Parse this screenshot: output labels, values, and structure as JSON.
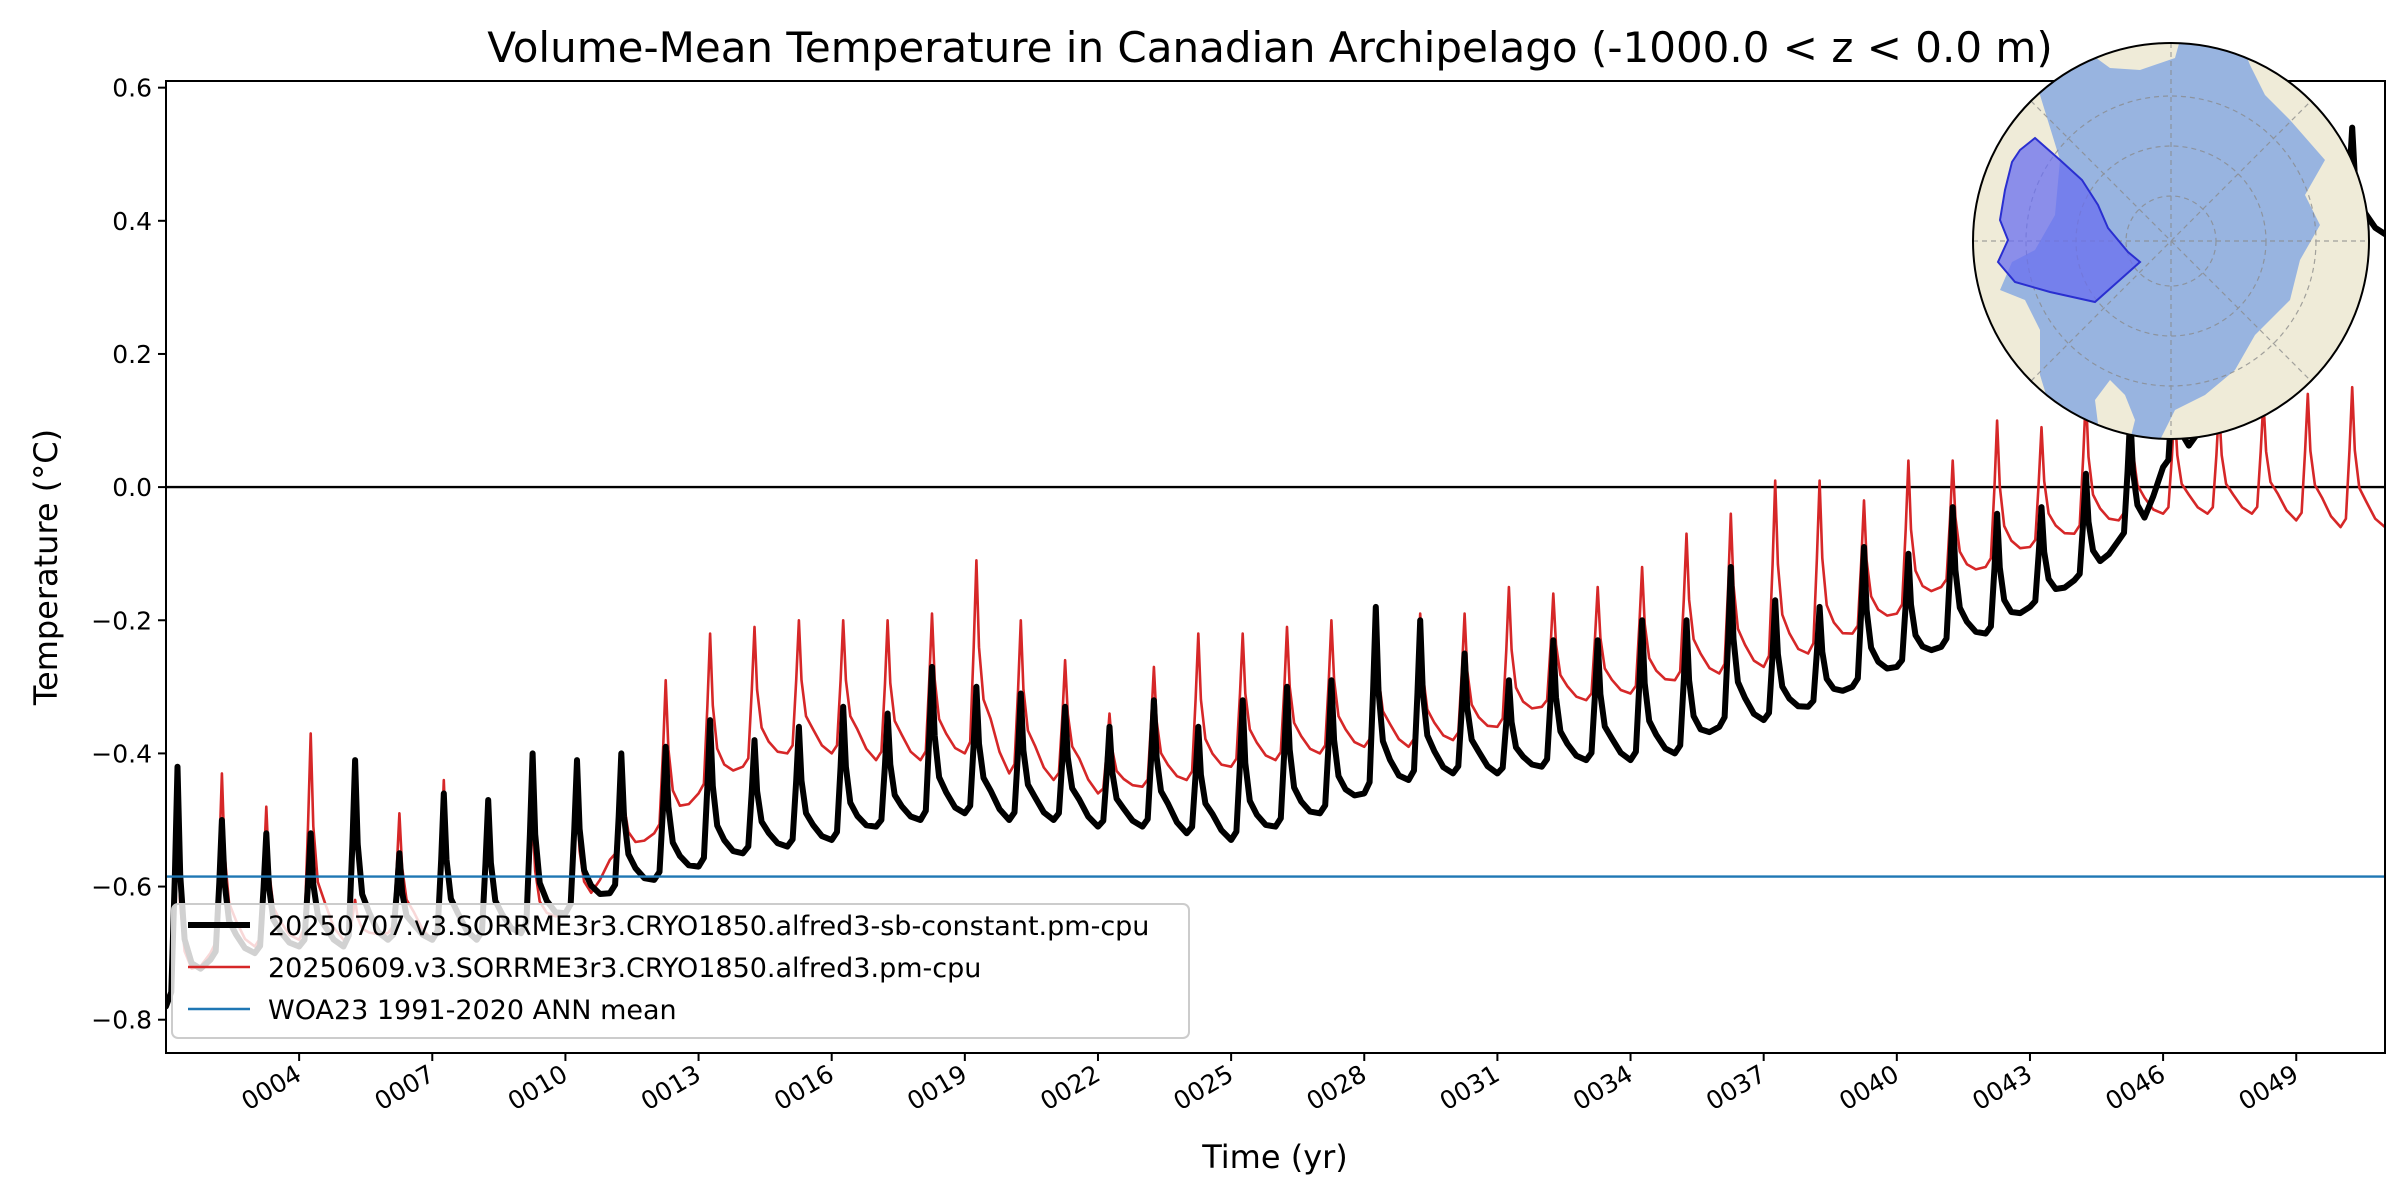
{
  "chart_data": {
    "type": "line",
    "title": "Volume-Mean Temperature in Canadian Archipelago (-1000.0 < z < 0.0 m)",
    "xlabel": "Time (yr)",
    "ylabel": "Temperature ($^\\circ$C)",
    "ylabel_display": "Temperature (°C)",
    "xlim": [
      1,
      51
    ],
    "ylim": [
      -0.85,
      0.61
    ],
    "x_tick_labels": [
      "0004",
      "0007",
      "0010",
      "0013",
      "0016",
      "0019",
      "0022",
      "0025",
      "0028",
      "0031",
      "0034",
      "0037",
      "0040",
      "0043",
      "0046",
      "0049"
    ],
    "x_tick_values": [
      4,
      7,
      10,
      13,
      16,
      19,
      22,
      25,
      28,
      31,
      34,
      37,
      40,
      43,
      46,
      49
    ],
    "y_tick_labels": [
      "−0.8",
      "−0.6",
      "−0.4",
      "−0.2",
      "0.0",
      "0.2",
      "0.4",
      "0.6"
    ],
    "y_tick_values": [
      -0.8,
      -0.6,
      -0.4,
      -0.2,
      0.0,
      0.2,
      0.4,
      0.6
    ],
    "zero_line": 0.0,
    "legend_position": "lower-left",
    "grid": false,
    "series": [
      {
        "name": "20250707.v3.SORRME3r3.CRYO1850.alfred3-sb-constant.pm-cpu",
        "color": "#000000",
        "style": "thick",
        "annual_peaks": [
          -0.42,
          -0.5,
          -0.52,
          -0.52,
          -0.41,
          -0.55,
          -0.46,
          -0.47,
          -0.4,
          -0.41,
          -0.4,
          -0.39,
          -0.35,
          -0.38,
          -0.36,
          -0.33,
          -0.34,
          -0.27,
          -0.3,
          -0.31,
          -0.33,
          -0.36,
          -0.32,
          -0.36,
          -0.32,
          -0.3,
          -0.29,
          -0.18,
          -0.2,
          -0.25,
          -0.29,
          -0.23,
          -0.23,
          -0.2,
          -0.2,
          -0.12,
          -0.17,
          -0.18,
          -0.09,
          -0.1,
          -0.03,
          -0.04,
          -0.03,
          0.02,
          0.11,
          0.21,
          0.34,
          0.45,
          0.55,
          0.54
        ],
        "annual_troughs": [
          -0.78,
          -0.71,
          -0.7,
          -0.69,
          -0.69,
          -0.68,
          -0.68,
          -0.68,
          -0.67,
          -0.64,
          -0.61,
          -0.59,
          -0.57,
          -0.55,
          -0.54,
          -0.53,
          -0.51,
          -0.5,
          -0.49,
          -0.5,
          -0.5,
          -0.51,
          -0.51,
          -0.52,
          -0.53,
          -0.51,
          -0.49,
          -0.46,
          -0.44,
          -0.43,
          -0.43,
          -0.42,
          -0.41,
          -0.41,
          -0.4,
          -0.36,
          -0.35,
          -0.33,
          -0.3,
          -0.27,
          -0.24,
          -0.22,
          -0.18,
          -0.14,
          -0.08,
          0.03,
          0.11,
          0.25,
          0.36,
          0.38
        ]
      },
      {
        "name": "20250609.v3.SORRME3r3.CRYO1850.alfred3.pm-cpu",
        "color": "#d62728",
        "style": "thin",
        "annual_peaks": [
          -0.51,
          -0.43,
          -0.48,
          -0.37,
          -0.62,
          -0.49,
          -0.44,
          -0.47,
          -0.5,
          -0.47,
          -0.41,
          -0.29,
          -0.22,
          -0.21,
          -0.2,
          -0.2,
          -0.2,
          -0.19,
          -0.11,
          -0.2,
          -0.26,
          -0.34,
          -0.27,
          -0.22,
          -0.22,
          -0.21,
          -0.2,
          -0.2,
          -0.19,
          -0.19,
          -0.15,
          -0.16,
          -0.15,
          -0.12,
          -0.07,
          -0.04,
          0.01,
          0.01,
          -0.02,
          0.04,
          0.04,
          0.1,
          0.09,
          0.14,
          0.14,
          0.12,
          0.12,
          0.13,
          0.14,
          0.15
        ],
        "annual_troughs": [
          -0.77,
          -0.7,
          -0.69,
          -0.68,
          -0.68,
          -0.67,
          -0.68,
          -0.68,
          -0.67,
          -0.64,
          -0.56,
          -0.52,
          -0.46,
          -0.42,
          -0.4,
          -0.4,
          -0.41,
          -0.41,
          -0.4,
          -0.43,
          -0.44,
          -0.46,
          -0.45,
          -0.44,
          -0.42,
          -0.41,
          -0.4,
          -0.39,
          -0.39,
          -0.38,
          -0.36,
          -0.33,
          -0.32,
          -0.31,
          -0.29,
          -0.28,
          -0.27,
          -0.25,
          -0.22,
          -0.19,
          -0.15,
          -0.12,
          -0.09,
          -0.07,
          -0.05,
          -0.04,
          -0.04,
          -0.04,
          -0.05,
          -0.06
        ]
      },
      {
        "name": "WOA23 1991-2020 ANN mean",
        "color": "#1f77b4",
        "style": "hline",
        "value": -0.585
      }
    ],
    "inset_map": {
      "projection": "north-polar-stereographic",
      "highlighted_region": "Canadian Archipelago",
      "ocean_color": "#98b4e0",
      "land_color": "#efebd8",
      "region_color": "#6a6ff0"
    }
  }
}
